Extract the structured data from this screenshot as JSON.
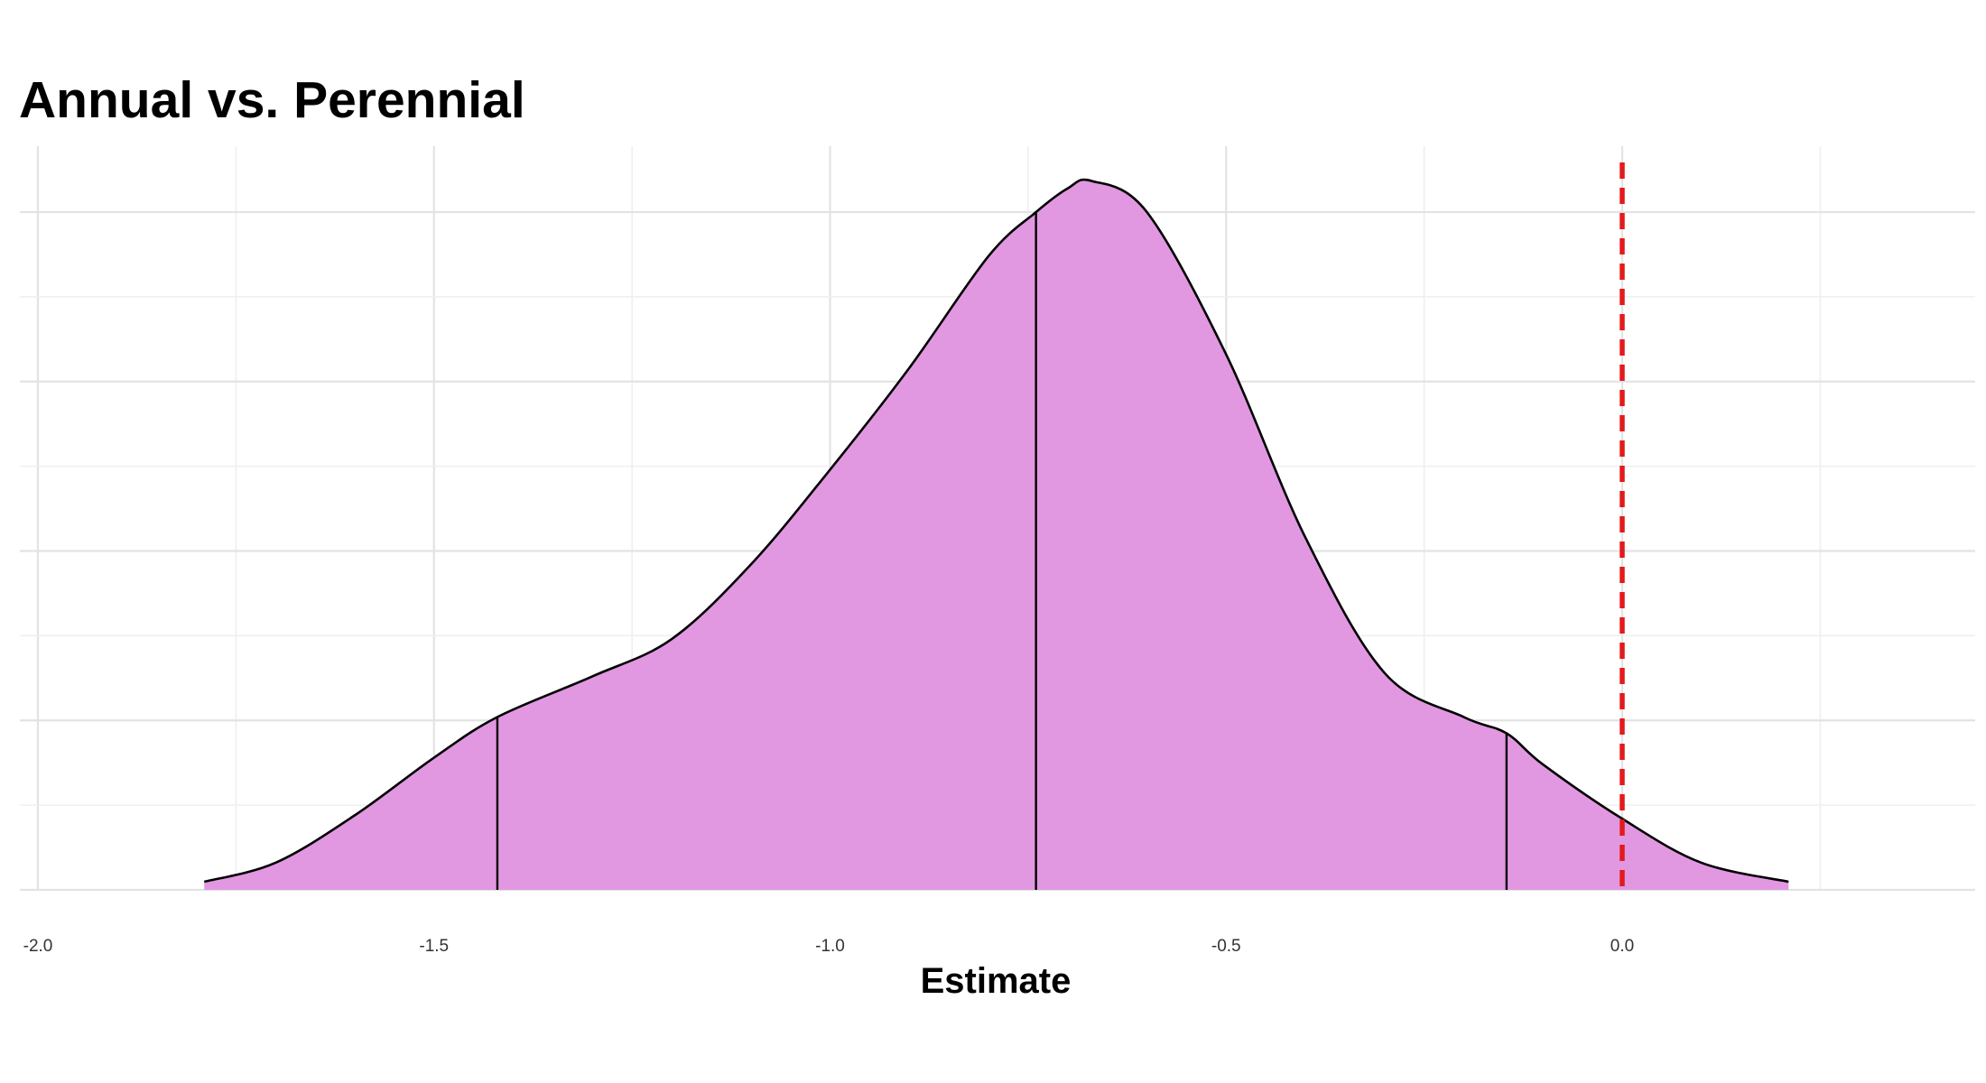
{
  "chart_data": {
    "type": "area",
    "title": "Annual vs. Perennial",
    "xlabel": "Estimate",
    "ylabel": "",
    "xlim": [
      -2.0,
      0.5
    ],
    "ylim": [
      0,
      1.04
    ],
    "x_ticks": [
      "-2.0",
      "-1.5",
      "-1.0",
      "-0.5",
      "0.0"
    ],
    "x_tick_values": [
      -2.0,
      -1.5,
      -1.0,
      -0.5,
      0.0
    ],
    "y_tick_labels_visible": false,
    "grid": true,
    "fill_color": "#e096e0",
    "curve_color": "#000000",
    "reference_line": {
      "x": 0.0,
      "color": "#e31a1c",
      "style": "dashed"
    },
    "quantile_lines": [
      {
        "x": -1.42,
        "density": 0.255
      },
      {
        "x": -0.74,
        "density": 1.0
      },
      {
        "x": -0.146,
        "density": 0.231
      }
    ],
    "density": {
      "x": [
        -1.79,
        -1.7,
        -1.6,
        -1.5,
        -1.42,
        -1.3,
        -1.2,
        -1.1,
        -1.0,
        -0.9,
        -0.8,
        -0.74,
        -0.7,
        -0.67,
        -0.6,
        -0.5,
        -0.4,
        -0.3,
        -0.2,
        -0.146,
        -0.1,
        0.0,
        0.1,
        0.21
      ],
      "y": [
        0.012,
        0.04,
        0.11,
        0.195,
        0.255,
        0.315,
        0.37,
        0.48,
        0.62,
        0.77,
        0.935,
        1.0,
        1.035,
        1.046,
        1.0,
        0.79,
        0.52,
        0.32,
        0.255,
        0.231,
        0.185,
        0.105,
        0.04,
        0.012
      ]
    }
  }
}
